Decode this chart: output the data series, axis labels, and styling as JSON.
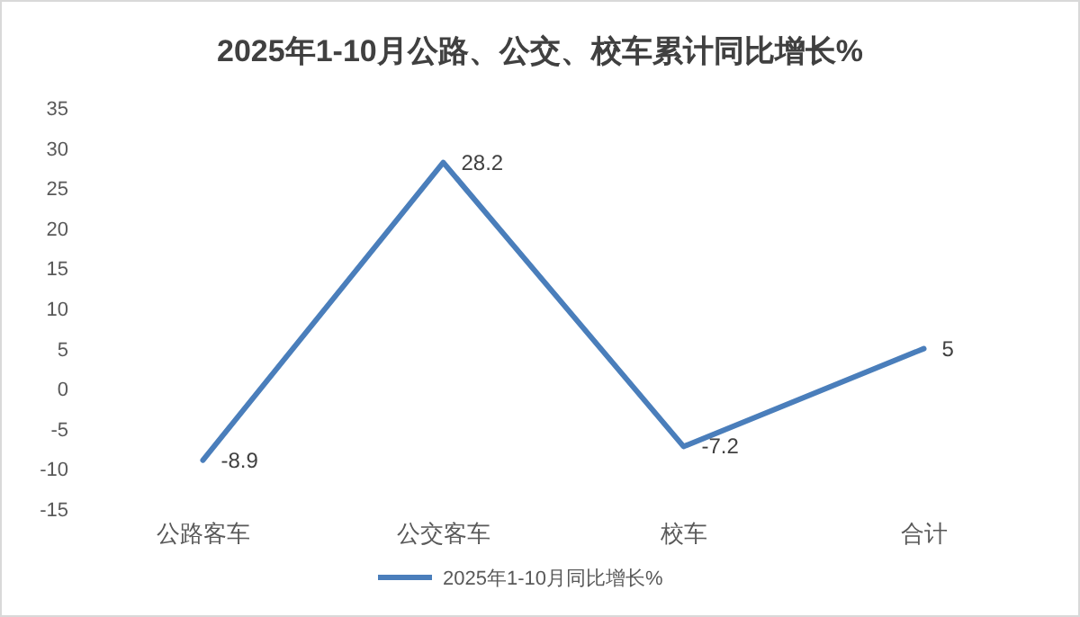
{
  "chart_data": {
    "type": "line",
    "title": "2025年1-10月公路、公交、校车累计同比增长%",
    "categories": [
      "公路客车",
      "公交客车",
      "校车",
      "合计"
    ],
    "series": [
      {
        "name": "2025年1-10月同比增长%",
        "color": "#4a7ebb",
        "values": [
          -8.9,
          28.2,
          -7.2,
          5
        ]
      }
    ],
    "ylim": [
      -15,
      35
    ],
    "yticks": [
      -15,
      -10,
      -5,
      0,
      5,
      10,
      15,
      20,
      25,
      30,
      35
    ],
    "grid": false,
    "legend": "bottom",
    "data_labels": true,
    "marker": "none",
    "line_style": "solid"
  }
}
